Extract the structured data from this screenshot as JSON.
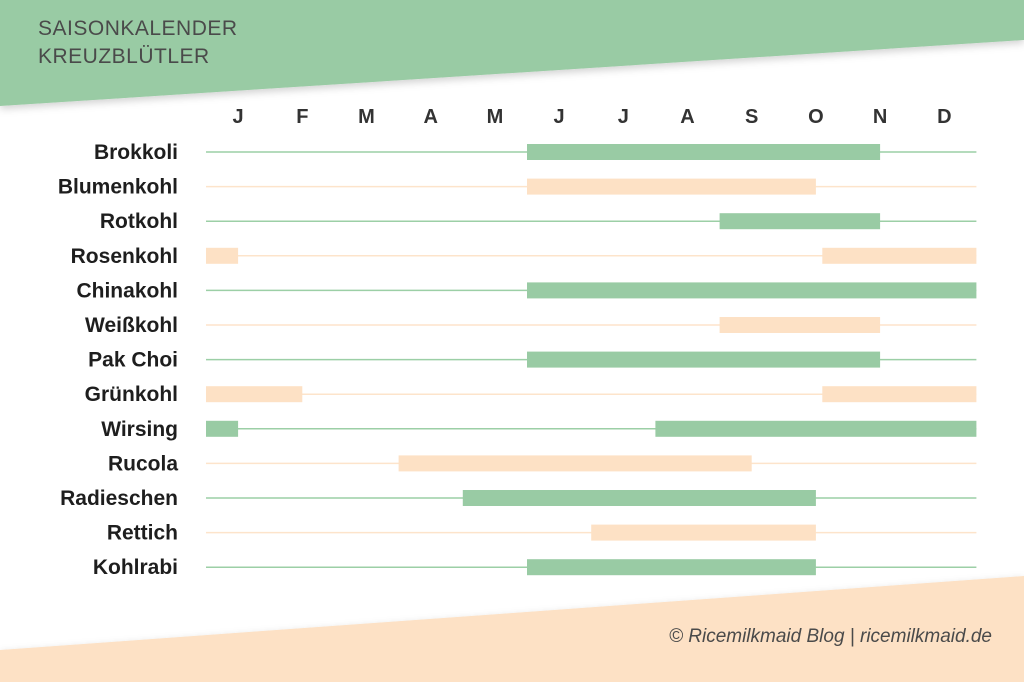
{
  "header": {
    "title_line_1": "SAISONKALENDER",
    "title_line_2": "KREUZBLÜTLER"
  },
  "footer": {
    "credit": "© Ricemilkmaid Blog | ricemilkmaid.de"
  },
  "colors": {
    "green": "#99cba4",
    "peach": "#fde1c5",
    "green_line": "#9ccfa6",
    "peach_line": "#fde4cb"
  },
  "chart_data": {
    "type": "gantt",
    "title": "SAISONKALENDER KREUZBLÜTLER",
    "x_tick_labels": [
      "J",
      "F",
      "M",
      "A",
      "M",
      "J",
      "J",
      "A",
      "S",
      "O",
      "N",
      "D"
    ],
    "x_unit": "month (1 = January, 12 = December; fractional values = part of month)",
    "xlim": [
      1,
      13
    ],
    "rows": [
      {
        "name": "Brokkoli",
        "color": "green",
        "periods": [
          [
            6.0,
            11.5
          ]
        ]
      },
      {
        "name": "Blumenkohl",
        "color": "peach",
        "periods": [
          [
            6.0,
            10.5
          ]
        ]
      },
      {
        "name": "Rotkohl",
        "color": "green",
        "periods": [
          [
            9.0,
            11.5
          ]
        ]
      },
      {
        "name": "Rosenkohl",
        "color": "peach",
        "periods": [
          [
            1.0,
            1.5
          ],
          [
            10.6,
            13.0
          ]
        ]
      },
      {
        "name": "Chinakohl",
        "color": "green",
        "periods": [
          [
            6.0,
            13.0
          ]
        ]
      },
      {
        "name": "Weißkohl",
        "color": "peach",
        "periods": [
          [
            9.0,
            11.5
          ]
        ]
      },
      {
        "name": "Pak Choi",
        "color": "green",
        "periods": [
          [
            6.0,
            11.5
          ]
        ]
      },
      {
        "name": "Grünkohl",
        "color": "peach",
        "periods": [
          [
            1.0,
            2.5
          ],
          [
            10.6,
            13.0
          ]
        ]
      },
      {
        "name": "Wirsing",
        "color": "green",
        "periods": [
          [
            1.0,
            1.5
          ],
          [
            8.0,
            13.0
          ]
        ]
      },
      {
        "name": "Rucola",
        "color": "peach",
        "periods": [
          [
            4.0,
            9.5
          ]
        ]
      },
      {
        "name": "Radieschen",
        "color": "green",
        "periods": [
          [
            5.0,
            10.5
          ]
        ]
      },
      {
        "name": "Rettich",
        "color": "peach",
        "periods": [
          [
            7.0,
            10.5
          ]
        ]
      },
      {
        "name": "Kohlrabi",
        "color": "green",
        "periods": [
          [
            6.0,
            10.5
          ]
        ]
      }
    ],
    "grid": false,
    "legend": "none"
  }
}
